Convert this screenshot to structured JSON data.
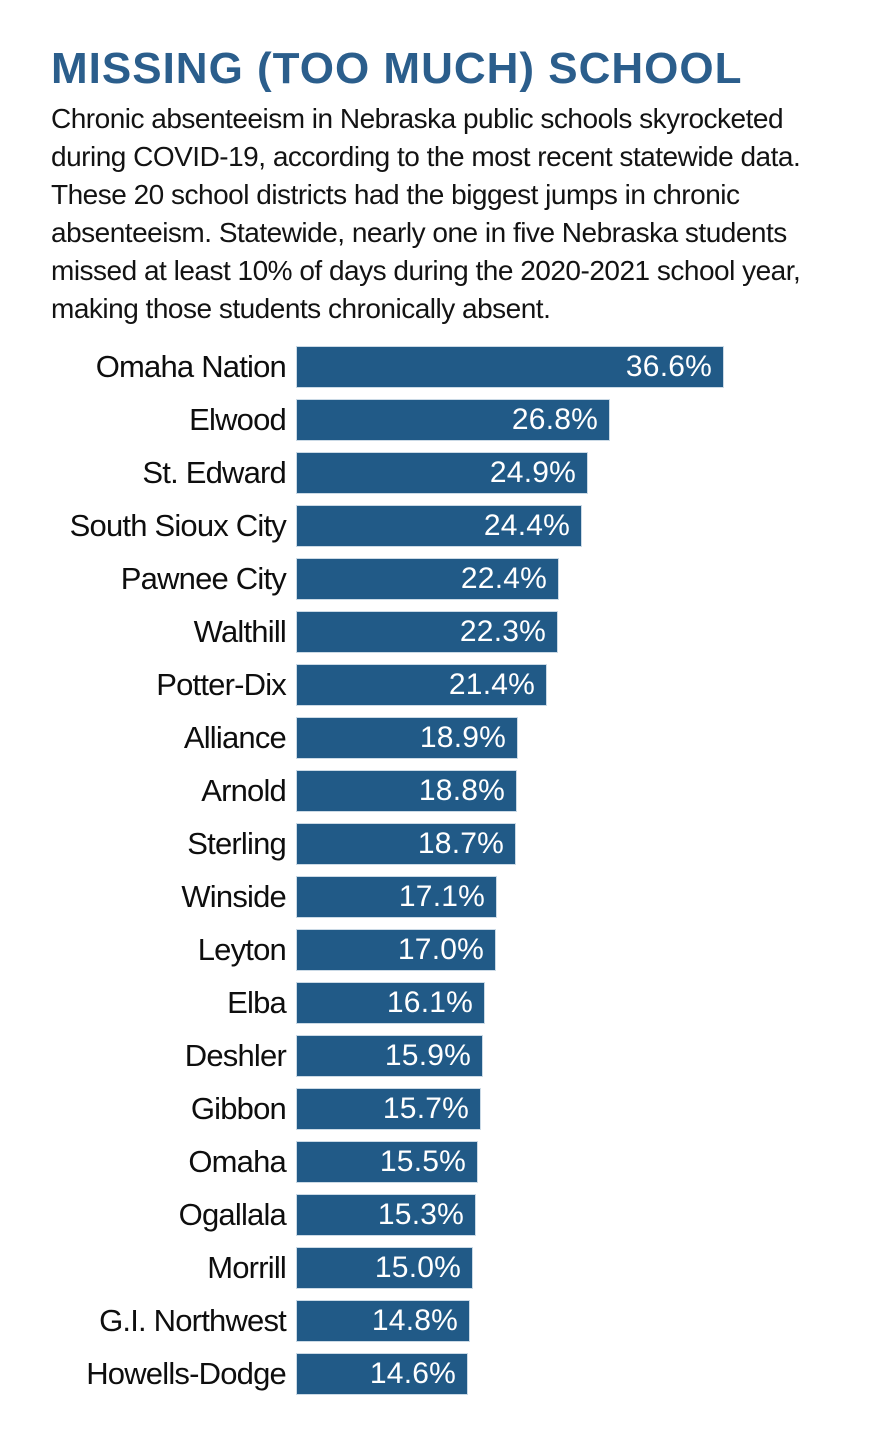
{
  "header": {
    "title": "MISSING (TOO MUCH) SCHOOL",
    "subtitle": "Chronic absenteeism in Nebraska public schools skyrocketed\nduring COVID-19, according to the most recent statewide data.\nThese 20 school districts had the biggest jumps in chronic\nabsenteeism. Statewide, nearly one in five Nebraska students\nmissed at least 10% of days during the 2020-2021 school year,\nmaking those students chronically absent."
  },
  "colors": {
    "title_accent": "#2b5e8c",
    "bar_fill": "#215a87",
    "label_text": "#0e0e0e",
    "value_text": "#ffffff",
    "background": "#ffffff"
  },
  "chart_data": {
    "type": "bar",
    "orientation": "horizontal",
    "title": "MISSING (TOO MUCH) SCHOOL",
    "xlabel": "",
    "ylabel": "",
    "unit": "%",
    "xlim": [
      0,
      37.7
    ],
    "grid": false,
    "legend": false,
    "value_labels_position": "inside-end",
    "categories": [
      "Omaha Nation",
      "Elwood",
      "St. Edward",
      "South Sioux City",
      "Pawnee City",
      "Walthill",
      "Potter-Dix",
      "Alliance",
      "Arnold",
      "Sterling",
      "Winside",
      "Leyton",
      "Elba",
      "Deshler",
      "Gibbon",
      "Omaha",
      "Ogallala",
      "Morrill",
      "G.I. Northwest",
      "Howells-Dodge"
    ],
    "values": [
      36.6,
      26.8,
      24.9,
      24.4,
      22.4,
      22.3,
      21.4,
      18.9,
      18.8,
      18.7,
      17.1,
      17.0,
      16.1,
      15.9,
      15.7,
      15.5,
      15.3,
      15.0,
      14.8,
      14.6
    ],
    "value_labels": [
      "36.6%",
      "26.8%",
      "24.9%",
      "24.4%",
      "22.4%",
      "22.3%",
      "21.4%",
      "18.9%",
      "18.8%",
      "18.7%",
      "17.1%",
      "17.0%",
      "16.1%",
      "15.9%",
      "15.7%",
      "15.5%",
      "15.3%",
      "15.0%",
      "14.8%",
      "14.6%"
    ]
  }
}
